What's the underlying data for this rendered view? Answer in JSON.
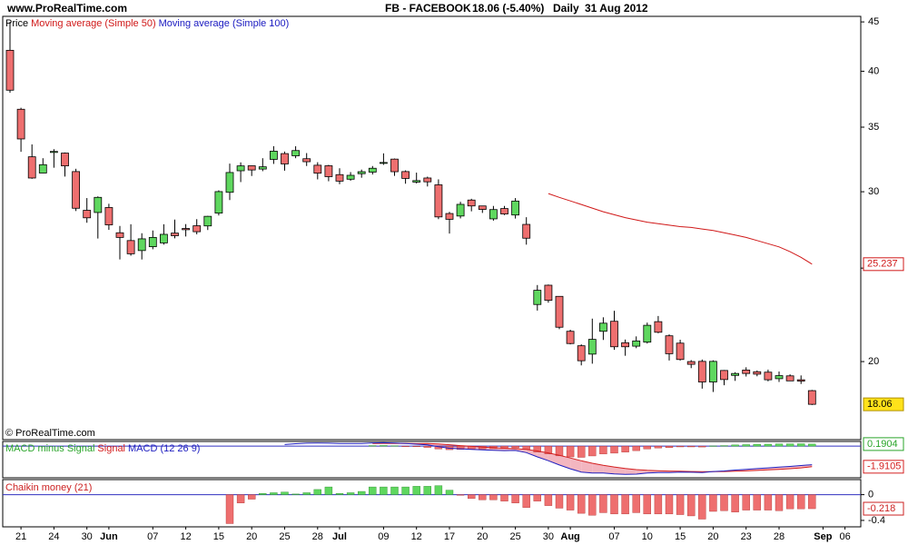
{
  "header": {
    "site": "www.ProRealTime.com",
    "instrument": "FB - FACEBOOK",
    "quote": "18.06 (-5.40%)",
    "period": "Daily",
    "date": "31 Aug 2012"
  },
  "chart_data": [
    {
      "type": "candlestick",
      "legend_label": "Price",
      "watermark": "© ProRealTime.com",
      "categories": [
        null,
        "21",
        null,
        null,
        "24",
        null,
        null,
        "30",
        null,
        "Jun",
        null,
        null,
        null,
        "07",
        null,
        null,
        "12",
        null,
        null,
        "15",
        null,
        null,
        "20",
        null,
        null,
        "25",
        null,
        null,
        "28",
        null,
        "Jul",
        null,
        null,
        null,
        "09",
        null,
        null,
        "12",
        null,
        null,
        "17",
        null,
        null,
        "20",
        null,
        null,
        "25",
        null,
        null,
        "30",
        null,
        "Aug",
        null,
        null,
        null,
        "07",
        null,
        null,
        "10",
        null,
        null,
        "15",
        null,
        null,
        "20",
        null,
        null,
        "23",
        null,
        null,
        "28",
        null,
        null,
        null,
        "Sep",
        null,
        "06"
      ],
      "open": [
        42.05,
        36.53,
        32.61,
        31.37,
        32.95,
        32.9,
        31.48,
        28.7,
        28.55,
        28.89,
        27.2,
        26.7,
        26.07,
        26.31,
        26.55,
        27.18,
        27.48,
        27.66,
        27.65,
        28.51,
        29.96,
        31.54,
        31.92,
        31.67,
        32.41,
        32.86,
        32.69,
        32.46,
        31.96,
        31.92,
        31.25,
        30.91,
        31.32,
        31.44,
        32.1,
        32.43,
        31.48,
        30.7,
        31.0,
        30.5,
        28.48,
        28.31,
        29.41,
        29.0,
        28.12,
        28.82,
        28.38,
        27.75,
        22.92,
        24.0,
        23.37,
        21.5,
        20.77,
        20.36,
        21.5,
        22.02,
        20.92,
        20.75,
        20.95,
        22.0,
        21.27,
        20.9,
        20.0,
        20.01,
        19.05,
        19.58,
        19.35,
        19.6,
        19.52,
        19.5,
        19.2,
        19.33,
        19.15,
        18.66,
        null,
        null,
        null
      ],
      "high": [
        45.0,
        36.66,
        33.59,
        32.5,
        33.21,
        32.95,
        31.69,
        29.55,
        29.67,
        29.15,
        27.65,
        27.76,
        27.17,
        27.35,
        27.76,
        28.07,
        27.77,
        28.1,
        28.32,
        30.1,
        32.08,
        32.18,
        31.93,
        32.5,
        33.45,
        33.02,
        33.44,
        32.9,
        32.19,
        31.99,
        31.73,
        31.44,
        31.63,
        31.9,
        32.88,
        32.48,
        31.57,
        31.4,
        31.1,
        30.9,
        28.59,
        29.29,
        29.5,
        29.01,
        29.0,
        29.0,
        29.55,
        28.23,
        24.01,
        24.04,
        23.37,
        21.58,
        20.84,
        22.16,
        22.23,
        22.58,
        21.08,
        21.24,
        21.95,
        22.3,
        21.34,
        21.07,
        20.07,
        20.1,
        20.06,
        19.6,
        19.5,
        19.73,
        19.58,
        19.62,
        19.53,
        19.4,
        19.35,
        18.69,
        null,
        null,
        null
      ],
      "low": [
        38.0,
        33.0,
        30.94,
        31.36,
        31.77,
        31.11,
        28.65,
        27.86,
        26.83,
        27.39,
        25.52,
        25.75,
        25.52,
        26.15,
        26.44,
        26.84,
        26.96,
        27.1,
        27.38,
        28.35,
        29.41,
        30.7,
        31.15,
        31.51,
        32.06,
        31.55,
        32.5,
        31.9,
        30.9,
        30.76,
        30.55,
        30.8,
        31.02,
        31.26,
        31.99,
        31.16,
        30.58,
        30.6,
        30.38,
        28.1,
        27.15,
        28.15,
        28.63,
        28.52,
        28.0,
        28.38,
        28.14,
        26.44,
        22.59,
        23.02,
        21.61,
        20.84,
        19.82,
        19.9,
        21.06,
        20.57,
        20.28,
        20.65,
        20.88,
        21.4,
        20.05,
        20.05,
        19.69,
        18.75,
        18.6,
        18.9,
        19.1,
        19.3,
        19.31,
        19.08,
        19.05,
        19.1,
        18.96,
        18.03,
        null,
        null,
        null
      ],
      "close": [
        38.23,
        34.03,
        31.0,
        32.0,
        33.03,
        31.91,
        28.84,
        28.19,
        29.6,
        27.72,
        26.9,
        25.87,
        26.81,
        26.9,
        27.1,
        27.01,
        27.4,
        27.27,
        28.29,
        30.01,
        31.41,
        31.91,
        31.6,
        31.84,
        33.05,
        32.06,
        33.1,
        32.23,
        31.36,
        31.1,
        30.77,
        31.2,
        31.47,
        31.73,
        32.17,
        31.47,
        30.97,
        30.81,
        30.72,
        28.25,
        28.09,
        29.11,
        29.0,
        28.76,
        28.75,
        28.45,
        29.34,
        26.85,
        23.71,
        23.15,
        21.71,
        20.88,
        20.04,
        21.09,
        21.92,
        20.72,
        20.72,
        21.01,
        21.81,
        21.45,
        20.38,
        20.1,
        19.87,
        19.05,
        20.01,
        19.16,
        19.44,
        19.44,
        19.41,
        19.15,
        19.34,
        19.1,
        19.09,
        18.06,
        null,
        null,
        null
      ],
      "up_color": "#5fd75f",
      "down_color": "#ee6f6f",
      "last_close_color": "#ffe21a",
      "log_scale": true,
      "ylim": [
        16.6,
        45.6
      ],
      "yticks": [
        20,
        25,
        30,
        35,
        40,
        45
      ],
      "series": [
        {
          "name": "Moving average (Simple 50)",
          "color": "#d01818",
          "label_last": true,
          "values": [
            null,
            null,
            null,
            null,
            null,
            null,
            null,
            null,
            null,
            null,
            null,
            null,
            null,
            null,
            null,
            null,
            null,
            null,
            null,
            null,
            null,
            null,
            null,
            null,
            null,
            null,
            null,
            null,
            null,
            null,
            null,
            null,
            null,
            null,
            null,
            null,
            null,
            null,
            null,
            null,
            null,
            null,
            null,
            null,
            null,
            null,
            null,
            null,
            null,
            29.87,
            29.6,
            29.35,
            29.1,
            28.85,
            28.6,
            28.4,
            28.2,
            28.05,
            27.9,
            27.8,
            27.7,
            27.6,
            27.55,
            27.45,
            27.35,
            27.2,
            27.05,
            26.9,
            26.7,
            26.5,
            26.3,
            26.0,
            25.65,
            25.237,
            null,
            null,
            null
          ]
        },
        {
          "name": "Moving average (Simple 100)",
          "color": "#1818c0",
          "label_last": false,
          "values": [
            null,
            null,
            null,
            null,
            null,
            null,
            null,
            null,
            null,
            null,
            null,
            null,
            null,
            null,
            null,
            null,
            null,
            null,
            null,
            null,
            null,
            null,
            null,
            null,
            null,
            null,
            null,
            null,
            null,
            null,
            null,
            null,
            null,
            null,
            null,
            null,
            null,
            null,
            null,
            null,
            null,
            null,
            null,
            null,
            null,
            null,
            null,
            null,
            null,
            null,
            null,
            null,
            null,
            null,
            null,
            null,
            null,
            null,
            null,
            null,
            null,
            null,
            null,
            null,
            null,
            null,
            null,
            null,
            null,
            null,
            null,
            null,
            null,
            null,
            null,
            null,
            null
          ]
        }
      ]
    },
    {
      "type": "macd",
      "ylim": [
        -2.85,
        0.35
      ],
      "zero_line": true,
      "up_color": "#5fd75f",
      "down_color": "#ee6f6f",
      "fill_color": "#f3b6c0",
      "series": [
        {
          "name": "MACD minus Signal",
          "color": "#2aa52a",
          "kind": "histogram",
          "label_last": true,
          "values": [
            null,
            null,
            null,
            null,
            null,
            null,
            null,
            null,
            null,
            null,
            null,
            null,
            null,
            null,
            null,
            null,
            null,
            null,
            null,
            null,
            null,
            null,
            null,
            null,
            null,
            null,
            null,
            null,
            null,
            null,
            null,
            null,
            null,
            0.05,
            0.06,
            0.03,
            -0.02,
            -0.05,
            -0.12,
            -0.26,
            -0.33,
            -0.3,
            -0.28,
            -0.26,
            -0.23,
            -0.22,
            -0.16,
            -0.29,
            -0.55,
            -0.72,
            -0.9,
            -1.0,
            -1.04,
            -0.91,
            -0.73,
            -0.65,
            -0.55,
            -0.42,
            -0.26,
            -0.17,
            -0.14,
            -0.07,
            -0.07,
            -0.08,
            0.02,
            0.05,
            0.11,
            0.14,
            0.17,
            0.18,
            0.2,
            0.21,
            0.22,
            0.1904,
            null,
            null,
            null
          ]
        },
        {
          "name": "Signal",
          "color": "#d42020",
          "kind": "signal",
          "label_last": true,
          "values": [
            null,
            null,
            null,
            null,
            null,
            null,
            null,
            null,
            null,
            null,
            null,
            null,
            null,
            null,
            null,
            null,
            null,
            null,
            null,
            null,
            null,
            null,
            null,
            null,
            null,
            null,
            null,
            null,
            null,
            null,
            null,
            null,
            null,
            0.25,
            0.26,
            0.25,
            0.26,
            0.23,
            0.24,
            0.21,
            0.13,
            0.05,
            -0.02,
            -0.09,
            -0.15,
            -0.2,
            -0.24,
            -0.31,
            -0.45,
            -0.63,
            -0.85,
            -1.1,
            -1.36,
            -1.59,
            -1.77,
            -1.93,
            -2.07,
            -2.18,
            -2.24,
            -2.28,
            -2.31,
            -2.33,
            -2.35,
            -2.37,
            -2.37,
            -2.35,
            -2.33,
            -2.29,
            -2.25,
            -2.2,
            -2.15,
            -2.09,
            -2.02,
            -1.9105,
            null,
            null,
            null
          ]
        },
        {
          "name": "MACD (12 26 9)",
          "color": "#2020c0",
          "kind": "macd",
          "label_last": false,
          "values": [
            null,
            null,
            null,
            null,
            null,
            null,
            null,
            null,
            null,
            null,
            null,
            null,
            null,
            null,
            null,
            null,
            null,
            null,
            null,
            null,
            null,
            null,
            null,
            null,
            null,
            0.15,
            0.22,
            0.27,
            0.28,
            0.27,
            0.25,
            0.24,
            0.25,
            0.3,
            0.32,
            0.28,
            0.24,
            0.18,
            0.12,
            -0.05,
            -0.2,
            -0.25,
            -0.3,
            -0.35,
            -0.38,
            -0.42,
            -0.4,
            -0.6,
            -1.0,
            -1.35,
            -1.75,
            -2.1,
            -2.4,
            -2.5,
            -2.5,
            -2.58,
            -2.62,
            -2.6,
            -2.5,
            -2.45,
            -2.45,
            -2.4,
            -2.42,
            -2.45,
            -2.35,
            -2.3,
            -2.22,
            -2.15,
            -2.08,
            -2.02,
            -1.95,
            -1.88,
            -1.8,
            -1.7201,
            null,
            null,
            null
          ]
        }
      ]
    },
    {
      "type": "bar",
      "title": "Chaikin money (21)",
      "title_color": "#cc2222",
      "ylim": [
        -0.5,
        0.22
      ],
      "yticks": [
        0,
        -0.4
      ],
      "zero_line": true,
      "up_color": "#5fd75f",
      "down_color": "#ee6f6f",
      "label_color": "#cc2222",
      "label_last": true,
      "values": [
        null,
        null,
        null,
        null,
        null,
        null,
        null,
        null,
        null,
        null,
        null,
        null,
        null,
        null,
        null,
        null,
        null,
        null,
        null,
        null,
        -0.45,
        -0.13,
        -0.07,
        0.02,
        0.03,
        0.04,
        0.01,
        0.03,
        0.08,
        0.12,
        0.02,
        0.03,
        0.05,
        0.12,
        0.12,
        0.12,
        0.12,
        0.13,
        0.13,
        0.14,
        0.07,
        -0.01,
        -0.06,
        -0.08,
        -0.08,
        -0.1,
        -0.13,
        -0.2,
        -0.1,
        -0.17,
        -0.21,
        -0.24,
        -0.29,
        -0.32,
        -0.28,
        -0.3,
        -0.3,
        -0.28,
        -0.3,
        -0.3,
        -0.3,
        -0.31,
        -0.33,
        -0.38,
        -0.26,
        -0.25,
        -0.27,
        -0.24,
        -0.24,
        -0.24,
        -0.25,
        -0.22,
        -0.22,
        -0.218,
        null,
        null,
        null
      ]
    }
  ]
}
